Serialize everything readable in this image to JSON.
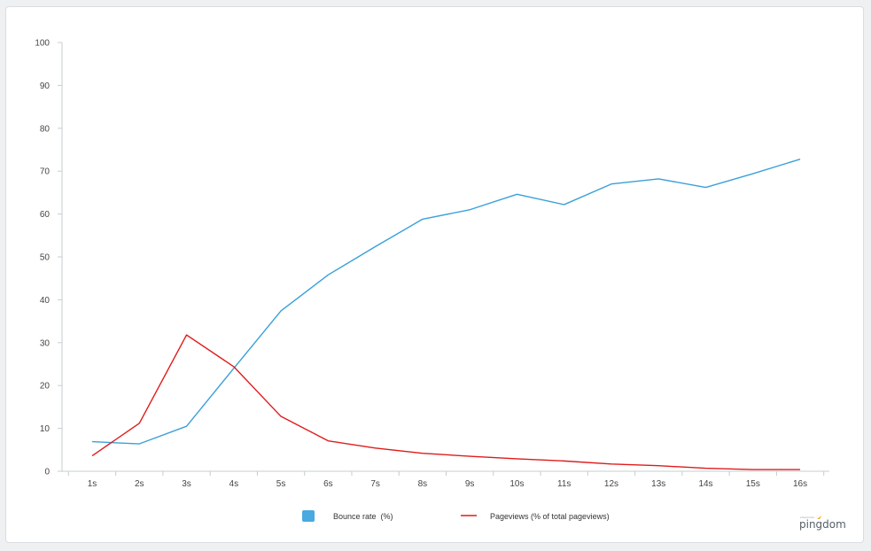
{
  "chart_data": {
    "type": "line",
    "title": "",
    "xlabel": "",
    "ylabel": "",
    "categories": [
      "1s",
      "2s",
      "3s",
      "4s",
      "5s",
      "6s",
      "7s",
      "8s",
      "9s",
      "10s",
      "11s",
      "12s",
      "13s",
      "14s",
      "15s",
      "16s"
    ],
    "ylim": [
      0,
      100
    ],
    "yticks": [
      0,
      10,
      20,
      30,
      40,
      50,
      60,
      70,
      80,
      90,
      100
    ],
    "grid": false,
    "legend_position": "bottom",
    "series": [
      {
        "name": "Bounce rate  (%)",
        "color": "#3aa0d8",
        "legend_color": "#4aa9e0",
        "values": [
          6.9,
          6.4,
          10.5,
          24.0,
          37.4,
          45.8,
          52.4,
          58.8,
          61.0,
          64.6,
          62.2,
          67.0,
          68.2,
          66.2,
          69.4,
          72.8
        ]
      },
      {
        "name": "Pageviews (% of total pageviews)",
        "color": "#e01b1b",
        "values": [
          3.6,
          11.2,
          31.8,
          24.4,
          12.8,
          7.1,
          5.4,
          4.2,
          3.5,
          2.9,
          2.4,
          1.7,
          1.3,
          0.7,
          0.4,
          0.4
        ]
      }
    ]
  },
  "brand": {
    "name": "pingdom",
    "tagline": "solarwinds",
    "accent": "#f5a623"
  }
}
